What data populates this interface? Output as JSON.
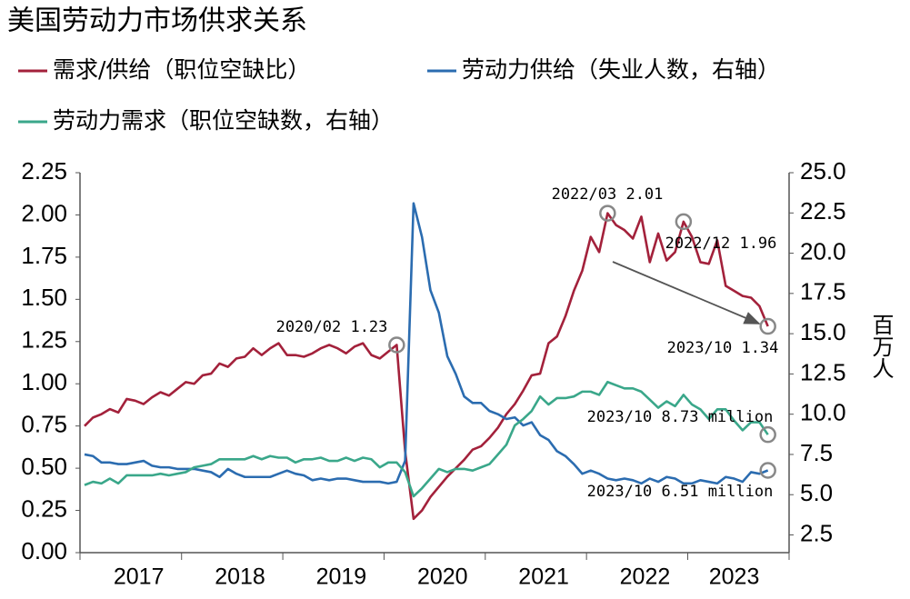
{
  "chart_data": {
    "type": "line",
    "title": "美国劳动力市场供求关系",
    "y2label": "百万人",
    "categories": [
      null,
      null,
      null,
      null,
      null,
      null,
      "2017",
      null,
      null,
      null,
      null,
      null,
      null,
      null,
      null,
      null,
      null,
      null,
      "2018",
      null,
      null,
      null,
      null,
      null,
      null,
      null,
      null,
      null,
      null,
      null,
      "2019",
      null,
      null,
      null,
      null,
      null,
      null,
      null,
      null,
      null,
      null,
      null,
      "2020",
      null,
      null,
      null,
      null,
      null,
      null,
      null,
      null,
      null,
      null,
      null,
      "2021",
      null,
      null,
      null,
      null,
      null,
      null,
      null,
      null,
      null,
      null,
      null,
      "2022",
      null,
      null,
      null,
      null,
      null,
      null,
      null,
      null,
      null,
      null,
      "2023",
      null,
      null,
      null,
      null
    ],
    "series": [
      {
        "name": "需求/供给（职位空缺比）",
        "color": "#a3213b",
        "axis": "y",
        "values": [
          0.75,
          0.8,
          0.82,
          0.85,
          0.83,
          0.91,
          0.9,
          0.88,
          0.92,
          0.95,
          0.93,
          0.97,
          1.01,
          1.0,
          1.05,
          1.06,
          1.12,
          1.1,
          1.15,
          1.16,
          1.21,
          1.17,
          1.21,
          1.24,
          1.17,
          1.17,
          1.16,
          1.18,
          1.21,
          1.23,
          1.21,
          1.18,
          1.22,
          1.24,
          1.17,
          1.15,
          1.19,
          1.23,
          0.6,
          0.2,
          0.25,
          0.33,
          0.39,
          0.45,
          0.5,
          0.55,
          0.61,
          0.63,
          0.68,
          0.74,
          0.82,
          0.88,
          0.96,
          1.05,
          1.06,
          1.24,
          1.28,
          1.4,
          1.55,
          1.67,
          1.87,
          1.78,
          2.01,
          1.94,
          1.91,
          1.86,
          1.99,
          1.72,
          1.89,
          1.73,
          1.78,
          1.96,
          1.87,
          1.72,
          1.71,
          1.85,
          1.58,
          1.55,
          1.52,
          1.51,
          1.46,
          1.34
        ]
      },
      {
        "name": "劳动力供给（失业人数，右轴）",
        "color": "#2b6cb0",
        "axis": "y2",
        "values": [
          7.5,
          7.4,
          7.0,
          7.0,
          6.9,
          6.9,
          7.0,
          7.1,
          6.8,
          6.7,
          6.7,
          6.6,
          6.6,
          6.6,
          6.5,
          6.4,
          6.1,
          6.6,
          6.3,
          6.1,
          6.1,
          6.1,
          6.1,
          6.3,
          6.5,
          6.3,
          6.2,
          5.9,
          6.0,
          5.9,
          6.0,
          6.0,
          5.9,
          5.8,
          5.8,
          5.8,
          5.7,
          5.8,
          7.1,
          23.1,
          21.0,
          17.7,
          16.3,
          13.6,
          12.5,
          11.1,
          10.7,
          10.7,
          10.2,
          10.0,
          9.7,
          9.8,
          9.3,
          9.5,
          8.7,
          8.4,
          7.7,
          7.4,
          6.9,
          6.3,
          6.5,
          6.3,
          6.0,
          5.9,
          6.0,
          5.9,
          5.7,
          6.0,
          5.8,
          6.1,
          6.0,
          5.7,
          5.7,
          5.9,
          5.8,
          5.7,
          6.1,
          6.0,
          5.8,
          6.4,
          6.3,
          6.51
        ]
      },
      {
        "name": "劳动力需求（职位空缺数，右轴）",
        "color": "#3aa78a",
        "axis": "y2",
        "values": [
          5.6,
          5.8,
          5.7,
          6.0,
          5.7,
          6.2,
          6.2,
          6.2,
          6.2,
          6.3,
          6.2,
          6.3,
          6.4,
          6.7,
          6.8,
          6.9,
          7.2,
          7.2,
          7.2,
          7.2,
          7.4,
          7.2,
          7.4,
          7.3,
          7.3,
          7.0,
          7.2,
          7.2,
          7.3,
          7.1,
          7.1,
          7.3,
          7.1,
          7.3,
          7.2,
          6.7,
          7.0,
          7.0,
          6.4,
          4.9,
          5.4,
          6.0,
          6.6,
          6.4,
          6.6,
          6.6,
          6.5,
          6.7,
          6.9,
          7.5,
          8.1,
          9.3,
          9.7,
          10.2,
          11.1,
          10.6,
          11.0,
          11.0,
          11.1,
          11.4,
          11.4,
          11.2,
          12.0,
          11.8,
          11.6,
          11.6,
          11.4,
          10.9,
          10.4,
          10.8,
          10.5,
          11.2,
          10.6,
          10.3,
          9.7,
          10.3,
          10.3,
          9.6,
          9.0,
          9.5,
          9.5,
          8.73
        ]
      }
    ],
    "ylim": [
      0,
      2.25
    ],
    "yticks": [
      {
        "value": 0,
        "label": "0.00"
      },
      0.25,
      {
        "value": 0.5,
        "label": "0.50"
      },
      0.75,
      {
        "value": 1,
        "label": "1.00"
      },
      1.25,
      {
        "value": 1.5,
        "label": "1.50"
      },
      1.75,
      {
        "value": 2,
        "label": "2.00"
      },
      2.25
    ],
    "y2lim": [
      1.4,
      25
    ],
    "y2ticks": [
      2.5,
      {
        "value": 5,
        "label": "5.0"
      },
      7.5,
      {
        "value": 10,
        "label": "10.0"
      },
      12.5,
      {
        "value": 15,
        "label": "15.0"
      },
      17.5,
      {
        "value": 20,
        "label": "20.0"
      },
      22.5,
      {
        "value": 25,
        "label": "25.0"
      }
    ],
    "annotations": [
      "2020/02 1.23",
      "2022/03 2.01",
      "2022/12 1.96",
      "2023/10 1.34",
      "2023/10 8.73 million",
      "2023/10 6.51 million"
    ]
  }
}
